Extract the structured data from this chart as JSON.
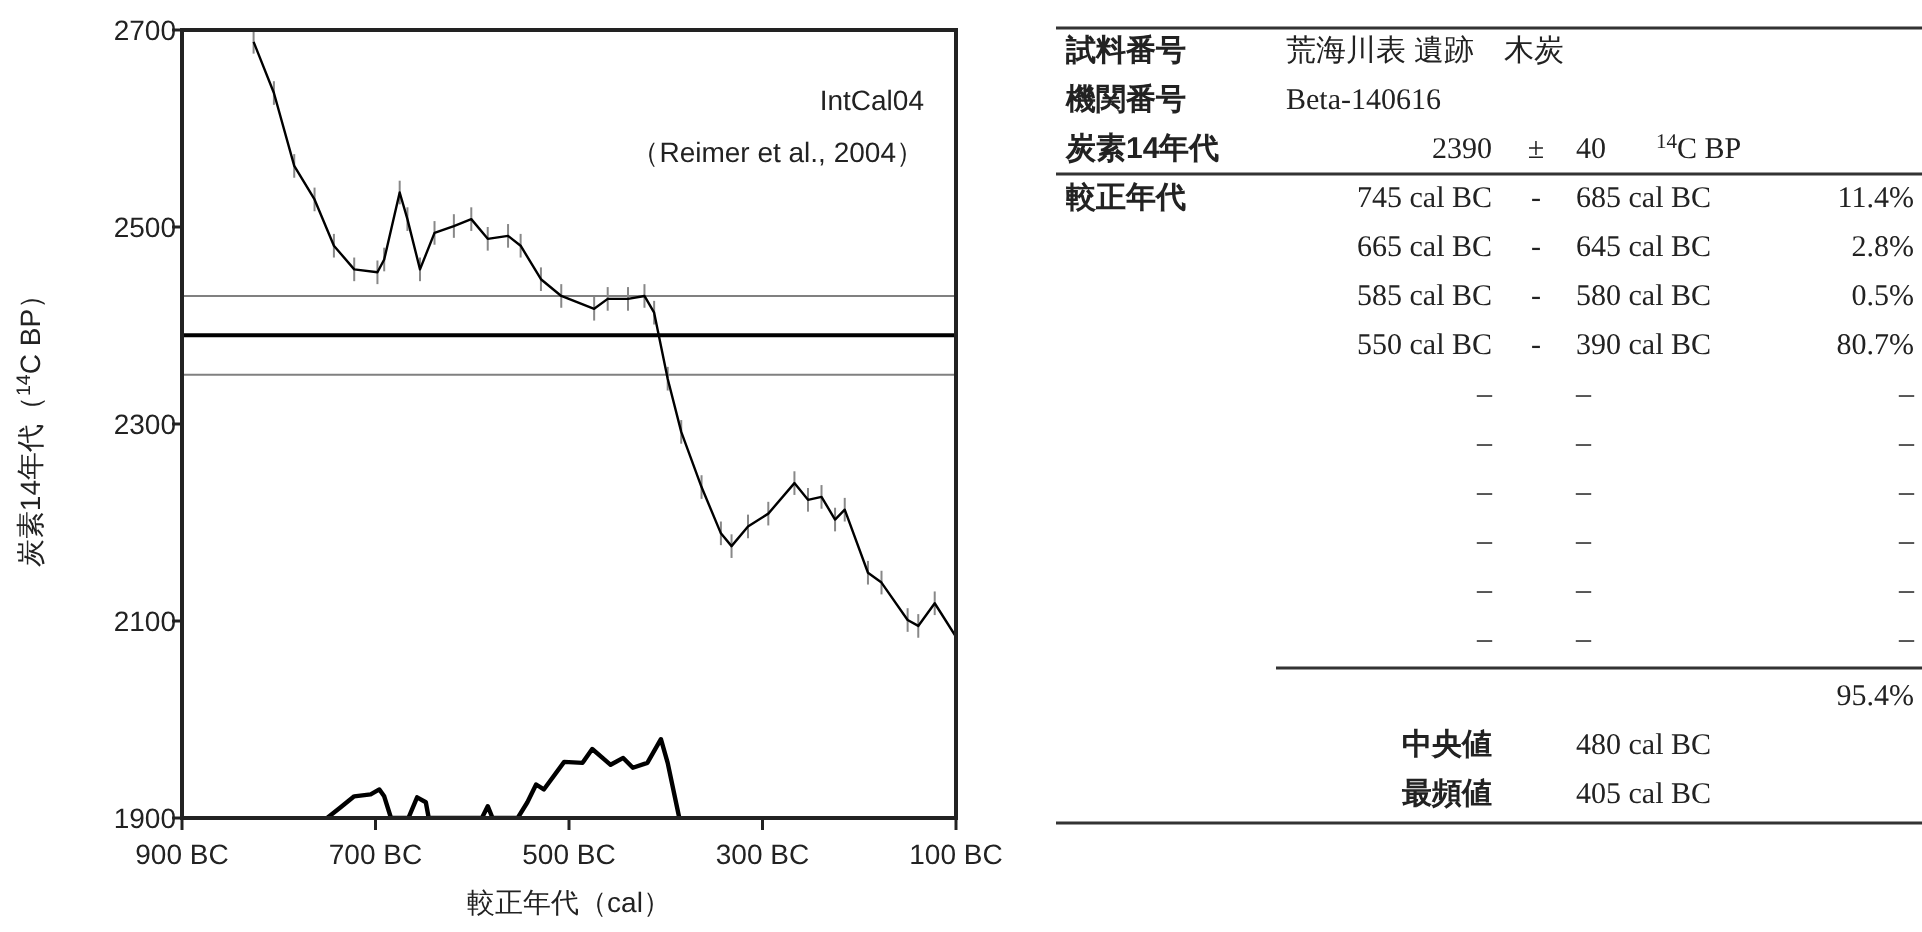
{
  "chart_data": [
    {
      "type": "line",
      "xlabel": "較正年代（cal）",
      "ylabel": "炭素14年代（$^{14}$C BP）",
      "annotations": [
        "IntCal04",
        "（Reimer et al., 2004）"
      ],
      "xlim": [
        -900,
        -100
      ],
      "xticks": [
        {
          "value": -900,
          "label": "900 BC"
        },
        {
          "value": -700,
          "label": "700 BC"
        },
        {
          "value": -500,
          "label": "500 BC"
        },
        {
          "value": -300,
          "label": "300 BC"
        },
        {
          "value": -100,
          "label": "100 BC"
        }
      ],
      "ylim": [
        1900,
        2700
      ],
      "yticks": [
        1900,
        2100,
        2300,
        2500,
        2700
      ],
      "ref_lines": [
        {
          "axis": "y",
          "value": 2430,
          "color": "#808080"
        },
        {
          "axis": "y",
          "value": 2390,
          "color": "#000000"
        },
        {
          "axis": "y",
          "value": 2350,
          "color": "#808080"
        }
      ],
      "series": [
        {
          "color": "#000000",
          "x": [
            -826,
            -805,
            -784,
            -763,
            -743,
            -722,
            -698,
            -691,
            -675,
            -667,
            -654,
            -639,
            -619,
            -601,
            -584,
            -563,
            -550,
            -529,
            -508,
            -474,
            -460,
            -439,
            -422,
            -412,
            -398,
            -384,
            -363,
            -343,
            -332,
            -315,
            -294,
            -267,
            -253,
            -239,
            -225,
            -215,
            -191,
            -177,
            -150,
            -139,
            -122,
            -100
          ],
          "values": [
            2688,
            2636,
            2562,
            2528,
            2481,
            2457,
            2454,
            2467,
            2535,
            2508,
            2457,
            2494,
            2501,
            2508,
            2488,
            2491,
            2481,
            2447,
            2430,
            2417,
            2427,
            2427,
            2430,
            2413,
            2346,
            2292,
            2236,
            2189,
            2176,
            2196,
            2209,
            2240,
            2223,
            2226,
            2203,
            2213,
            2149,
            2139,
            2101,
            2095,
            2118,
            2084
          ],
          "errors": [
            12,
            12,
            12,
            12,
            12,
            12,
            12,
            12,
            12,
            12,
            12,
            12,
            12,
            12,
            12,
            12,
            12,
            12,
            12,
            12,
            12,
            12,
            12,
            12,
            12,
            12,
            12,
            12,
            12,
            12,
            12,
            12,
            12,
            12,
            12,
            12,
            12,
            12,
            12,
            12,
            12,
            12
          ]
        },
        {
          "color": "#000000",
          "x": [
            -750,
            -736,
            -722,
            -705,
            -696,
            -691,
            -684,
            -666,
            -657,
            -648,
            -645,
            -590,
            -584,
            -579,
            -553,
            -543,
            -534,
            -526,
            -505,
            -486,
            -476,
            -457,
            -444,
            -434,
            -419,
            -405,
            -398,
            -386
          ],
          "values": [
            1900,
            1911,
            1922,
            1924,
            1929,
            1922,
            1900,
            1900,
            1921,
            1916,
            1900,
            1900,
            1912,
            1900,
            1900,
            1916,
            1934,
            1929,
            1957,
            1956,
            1970,
            1954,
            1961,
            1951,
            1956,
            1980,
            1956,
            1900
          ]
        }
      ],
      "grid": false
    },
    {
      "type": "other",
      "annotations": [
        "試料番号",
        "荒海川表 遺跡　木炭",
        "機関番号",
        "Beta-140616",
        "炭素14年代",
        "2390",
        "±",
        "40",
        "$^{14}$C BP",
        "較正年代",
        "745 cal BC",
        "-",
        "685 cal BC",
        "11.4%",
        "665 cal BC",
        "-",
        "645 cal BC",
        "2.8%",
        "585 cal BC",
        "-",
        "580 cal BC",
        "0.5%",
        "550 cal BC",
        "-",
        "390 cal BC",
        "80.7%",
        "–",
        "–",
        "–",
        "–",
        "–",
        "–",
        "–",
        "–",
        "–",
        "–",
        "–",
        "–",
        "–",
        "–",
        "–",
        "–",
        "–",
        "–",
        "95.4%",
        "中央値",
        "480 cal BC",
        "最頻値",
        "405 cal BC"
      ]
    }
  ]
}
